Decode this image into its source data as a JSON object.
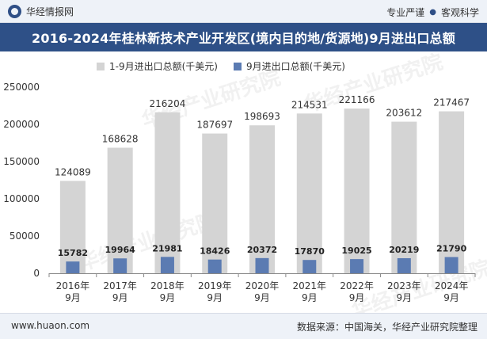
{
  "header": {
    "brand": "华经情报网",
    "slogan_left": "专业严谨",
    "slogan_dot": "●",
    "slogan_right": "客观科学"
  },
  "title": "2016-2024年桂林新技术产业开发区(境内目的地/货源地)9月进出口总额",
  "footer": {
    "website": "www.huaon.com",
    "source": "数据来源：中国海关，华经产业研究院整理"
  },
  "watermark": "华经产业研究院",
  "colors": {
    "series1": "#d4d4d4",
    "series2": "#5b7bb2",
    "title_bg": "#2e5087"
  },
  "chart_data": {
    "type": "bar",
    "categories": [
      "2016年9月",
      "2017年9月",
      "2018年9月",
      "2019年9月",
      "2020年9月",
      "2021年9月",
      "2022年9月",
      "2023年9月",
      "2024年9月"
    ],
    "category_lines": [
      [
        "2016年",
        "9月"
      ],
      [
        "2017年",
        "9月"
      ],
      [
        "2018年",
        "9月"
      ],
      [
        "2019年",
        "9月"
      ],
      [
        "2020年",
        "9月"
      ],
      [
        "2021年",
        "9月"
      ],
      [
        "2022年",
        "9月"
      ],
      [
        "2023年",
        "9月"
      ],
      [
        "2024年",
        "9月"
      ]
    ],
    "series": [
      {
        "name": "1-9月进出口总额(千美元)",
        "values": [
          124089,
          168628,
          216204,
          187697,
          198693,
          214531,
          221166,
          203612,
          217467
        ]
      },
      {
        "name": "9月进出口总额(千美元)",
        "values": [
          15782,
          19964,
          21981,
          18426,
          20372,
          17870,
          19025,
          20219,
          21790
        ]
      }
    ],
    "ylim": [
      0,
      250000
    ],
    "yticks": [
      0,
      50000,
      100000,
      150000,
      200000,
      250000
    ],
    "legend_position": "top-left",
    "grid": false
  }
}
